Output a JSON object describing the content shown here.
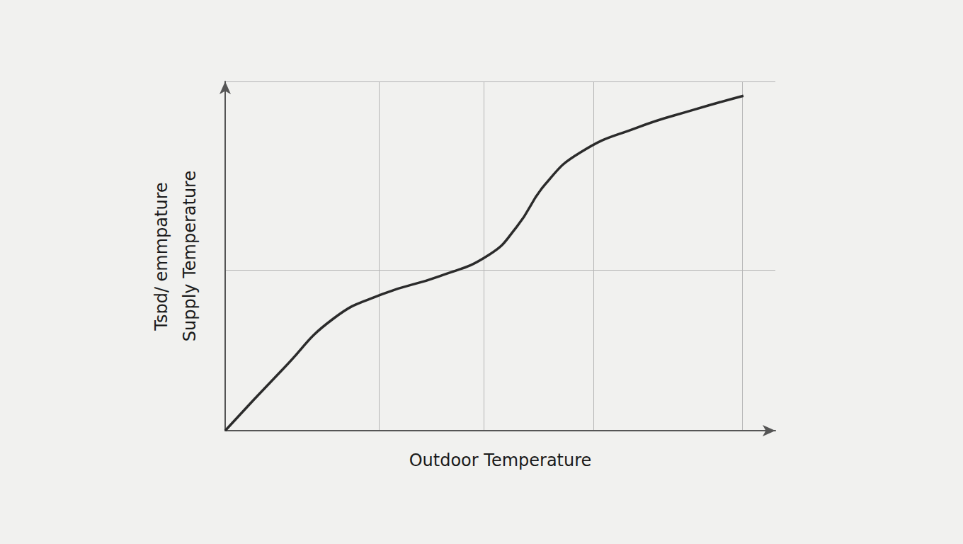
{
  "chart_data": {
    "type": "line",
    "xlabel": "Outdoor Temperature",
    "ylabel": "Supply Temperature",
    "annotations": [
      "Tsɒd/ emmpature"
    ],
    "x": [
      0,
      10.6,
      19.6,
      28.6,
      38.9,
      47.9,
      53.0,
      58.2,
      64.6,
      74.9,
      85.2,
      94.2
    ],
    "values": [
      0,
      17.8,
      32.0,
      39.1,
      44.2,
      50.3,
      58.4,
      70.6,
      79.7,
      86.8,
      91.9,
      95.9
    ],
    "color": "#2b2b2b",
    "xlim": [
      0,
      100
    ],
    "xticks": [
      0,
      28,
      47,
      67,
      94
    ],
    "ylim": [
      0,
      100
    ],
    "yticks": [
      0,
      46,
      100
    ],
    "grid": true,
    "tick_labels": false
  }
}
